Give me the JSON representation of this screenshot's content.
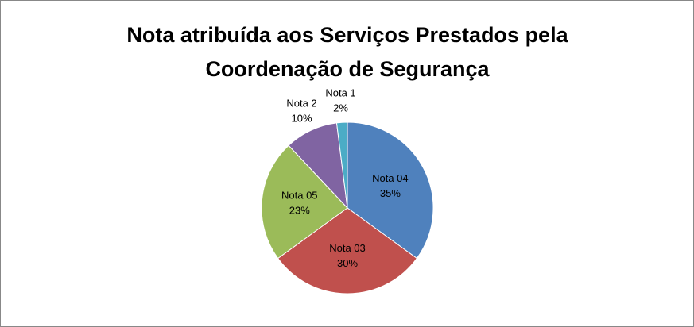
{
  "chart_data": {
    "type": "pie",
    "title": "Nota atribuída aos Serviços Prestados pela Coordenação de Segurança",
    "categories": [
      "Nota 04",
      "Nota 03",
      "Nota 05",
      "Nota 2",
      "Nota 1"
    ],
    "values": [
      35,
      30,
      23,
      10,
      2
    ],
    "value_labels": [
      "35%",
      "30%",
      "23%",
      "10%",
      "2%"
    ],
    "colors": [
      "#4f81bd",
      "#c0504d",
      "#9bbb59",
      "#8064a2",
      "#4bacc6"
    ]
  }
}
